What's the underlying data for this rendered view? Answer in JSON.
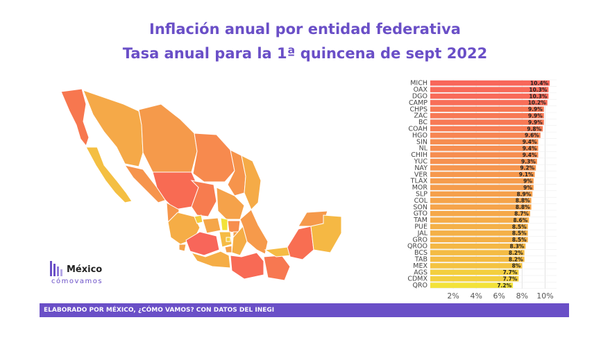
{
  "header": {
    "title": "Inflación anual por entidad federativa",
    "subtitle": "Tasa anual para la 1ª quincena de sept 2022"
  },
  "logo": {
    "word": "México",
    "sub": "cómovamos"
  },
  "footer": {
    "text": "ELABORADO POR MÉXICO, ¿CÓMO VAMOS? CON DATOS DEL INEGI"
  },
  "colors": {
    "title": "#6a4fc7",
    "footer_bg": "#6a4fc7",
    "high": "#f8665a",
    "low": "#f2e23a"
  },
  "chart_data": {
    "type": "bar",
    "orientation": "horizontal",
    "title": "Inflación anual por entidad federativa",
    "subtitle": "Tasa anual para la 1ª quincena de sept 2022",
    "categories": [
      "MICH",
      "OAX",
      "DGO",
      "CAMP",
      "CHPS",
      "ZAC",
      "BC",
      "COAH",
      "HGO",
      "SIN",
      "NL",
      "CHIH",
      "YUC",
      "NAY",
      "VER",
      "TLAX",
      "MOR",
      "SLP",
      "COL",
      "SON",
      "GTO",
      "TAM",
      "PUE",
      "JAL",
      "GRO",
      "QROO",
      "BCS",
      "TAB",
      "MEX",
      "AGS",
      "CDMX",
      "QRO"
    ],
    "values": [
      10.4,
      10.3,
      10.3,
      10.2,
      9.9,
      9.9,
      9.9,
      9.8,
      9.6,
      9.4,
      9.4,
      9.4,
      9.3,
      9.2,
      9.1,
      9,
      9,
      8.9,
      8.8,
      8.8,
      8.7,
      8.6,
      8.5,
      8.5,
      8.5,
      8.3,
      8.2,
      8.2,
      8,
      7.7,
      7.7,
      7.2
    ],
    "value_labels": [
      "10.4%",
      "10.3%",
      "10.3%",
      "10.2%",
      "9.9%",
      "9.9%",
      "9.9%",
      "9.8%",
      "9.6%",
      "9.4%",
      "9.4%",
      "9.4%",
      "9.3%",
      "9.2%",
      "9.1%",
      "9%",
      "9%",
      "8.9%",
      "8.8%",
      "8.8%",
      "8.7%",
      "8.6%",
      "8.5%",
      "8.5%",
      "8.5%",
      "8.3%",
      "8.2%",
      "8.2%",
      "8%",
      "7.7%",
      "7.7%",
      "7.2%"
    ],
    "xticks": [
      "2%",
      "4%",
      "6%",
      "8%",
      "10%"
    ],
    "xtick_values": [
      2,
      4,
      6,
      8,
      10
    ],
    "xlim": [
      0,
      11
    ],
    "grid": true,
    "color_scale": [
      "#f2e23a",
      "#f8665a"
    ]
  }
}
